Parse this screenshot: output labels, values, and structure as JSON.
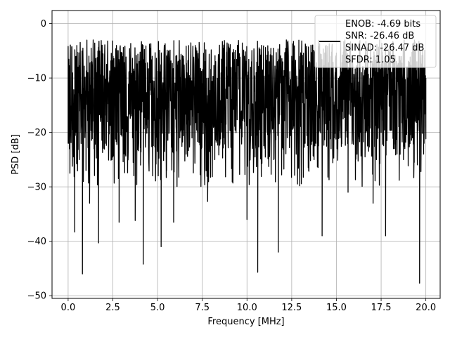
{
  "chart_data": {
    "type": "line",
    "title": "",
    "xlabel": "Frequency [MHz]",
    "ylabel": "PSD [dB]",
    "xlim": [
      -0.9,
      20.8
    ],
    "ylim": [
      -50.5,
      2.4
    ],
    "x_ticks": [
      0.0,
      2.5,
      5.0,
      7.5,
      10.0,
      12.5,
      15.0,
      17.5,
      20.0
    ],
    "x_tick_labels": [
      "0.0",
      "2.5",
      "5.0",
      "7.5",
      "10.0",
      "12.5",
      "15.0",
      "17.5",
      "20.0"
    ],
    "y_ticks": [
      0,
      -10,
      -20,
      -30,
      -40,
      -50
    ],
    "y_tick_labels": [
      "0",
      "−10",
      "−20",
      "−30",
      "−40",
      "−50"
    ],
    "grid": true,
    "legend": {
      "placement": "top-right",
      "lines": [
        "ENOB: -4.69 bits",
        "SNR: -26.46 dB",
        "SINAD: -26.47 dB",
        "SFDR: 1.05"
      ]
    },
    "series": [
      {
        "color": "#000000",
        "x_range": [
          0.0,
          20.0
        ],
        "typical_level_db": -14,
        "points": [
          [
            0.0,
            -4.2
          ],
          [
            0.02,
            -22.0
          ],
          [
            0.05,
            -13.0
          ],
          [
            0.1,
            -27.5
          ],
          [
            0.2,
            -12.0
          ],
          [
            0.3,
            -24.5
          ],
          [
            0.37,
            -38.3
          ],
          [
            0.45,
            -20.0
          ],
          [
            0.55,
            -8.0
          ],
          [
            0.62,
            -25.0
          ],
          [
            0.72,
            -13.0
          ],
          [
            0.8,
            -46.0
          ],
          [
            0.9,
            -15.0
          ],
          [
            1.0,
            -27.0
          ],
          [
            1.1,
            -10.0
          ],
          [
            1.2,
            -33.0
          ],
          [
            1.3,
            -12.0
          ],
          [
            1.45,
            -23.0
          ],
          [
            1.6,
            -9.0
          ],
          [
            1.7,
            -40.3
          ],
          [
            1.8,
            -18.0
          ],
          [
            1.95,
            -6.0
          ],
          [
            2.1,
            -22.0
          ],
          [
            2.3,
            -11.0
          ],
          [
            2.45,
            -25.0
          ],
          [
            2.6,
            -8.0
          ],
          [
            2.75,
            -20.0
          ],
          [
            2.85,
            -36.5
          ],
          [
            3.0,
            -12.0
          ],
          [
            3.2,
            -24.0
          ],
          [
            3.4,
            -9.0
          ],
          [
            3.6,
            -21.0
          ],
          [
            3.75,
            -36.2
          ],
          [
            3.9,
            -8.0
          ],
          [
            4.05,
            -26.0
          ],
          [
            4.2,
            -44.2
          ],
          [
            4.35,
            -10.0
          ],
          [
            4.5,
            -23.0
          ],
          [
            4.7,
            -6.0
          ],
          [
            4.9,
            -25.0
          ],
          [
            5.05,
            -14.0
          ],
          [
            5.2,
            -41.0
          ],
          [
            5.35,
            -11.0
          ],
          [
            5.5,
            -27.0
          ],
          [
            5.7,
            -7.0
          ],
          [
            5.9,
            -36.5
          ],
          [
            6.05,
            -9.0
          ],
          [
            6.25,
            -21.0
          ],
          [
            6.45,
            -6.0
          ],
          [
            6.6,
            -24.0
          ],
          [
            6.8,
            -10.0
          ],
          [
            7.0,
            -20.0
          ],
          [
            7.2,
            -5.0
          ],
          [
            7.45,
            -23.0
          ],
          [
            7.7,
            -8.0
          ],
          [
            7.8,
            -32.7
          ],
          [
            8.0,
            -11.0
          ],
          [
            8.2,
            -25.0
          ],
          [
            8.45,
            -7.0
          ],
          [
            8.7,
            -21.0
          ],
          [
            8.95,
            -5.5
          ],
          [
            9.15,
            -24.0
          ],
          [
            9.4,
            -9.0
          ],
          [
            9.6,
            -20.0
          ],
          [
            9.85,
            -6.0
          ],
          [
            10.0,
            -36.0
          ],
          [
            10.2,
            -8.0
          ],
          [
            10.45,
            -23.0
          ],
          [
            10.6,
            -45.7
          ],
          [
            10.8,
            -10.0
          ],
          [
            11.0,
            -22.0
          ],
          [
            11.25,
            -7.0
          ],
          [
            11.5,
            -25.0
          ],
          [
            11.75,
            -42.0
          ],
          [
            12.0,
            -9.0
          ],
          [
            12.25,
            -21.0
          ],
          [
            12.5,
            -6.0
          ],
          [
            12.75,
            -24.0
          ],
          [
            13.0,
            -10.0
          ],
          [
            13.25,
            -22.0
          ],
          [
            13.5,
            -7.0
          ],
          [
            13.75,
            -25.0
          ],
          [
            14.0,
            -11.0
          ],
          [
            14.2,
            -39.0
          ],
          [
            14.45,
            -8.0
          ],
          [
            14.7,
            -23.0
          ],
          [
            14.95,
            -6.5
          ],
          [
            15.2,
            -21.0
          ],
          [
            15.45,
            -10.0
          ],
          [
            15.65,
            -31.0
          ],
          [
            15.9,
            -7.0
          ],
          [
            16.15,
            -24.0
          ],
          [
            16.4,
            -9.0
          ],
          [
            16.65,
            -20.0
          ],
          [
            16.9,
            -6.0
          ],
          [
            17.05,
            -33.0
          ],
          [
            17.3,
            -9.0
          ],
          [
            17.5,
            -20.0
          ],
          [
            17.75,
            -39.0
          ],
          [
            18.0,
            -8.0
          ],
          [
            18.25,
            -23.0
          ],
          [
            18.5,
            -6.0
          ],
          [
            18.75,
            -25.0
          ],
          [
            19.0,
            -10.0
          ],
          [
            19.25,
            -21.0
          ],
          [
            19.5,
            -7.0
          ],
          [
            19.65,
            -47.7
          ],
          [
            19.8,
            -12.0
          ],
          [
            19.9,
            -22.0
          ],
          [
            20.0,
            -10.0
          ]
        ]
      }
    ]
  }
}
